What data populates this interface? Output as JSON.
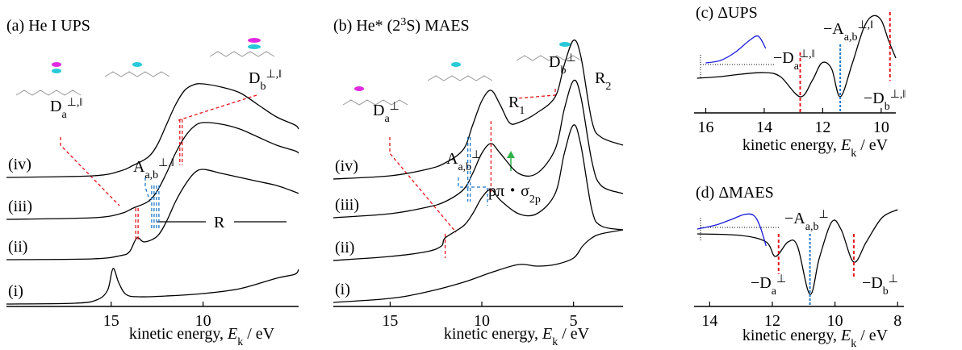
{
  "chart_data": [
    {
      "type": "line",
      "title": [
        {
          "text": "(a) He I UPS"
        }
      ],
      "x_label": [
        {
          "text": "kinetic energy, "
        },
        {
          "text": "E",
          "italic": true
        },
        {
          "text": "k",
          "sub": true
        },
        {
          "text": " / eV"
        }
      ],
      "xlim": [
        20.7,
        4.8
      ],
      "xticks": [
        15,
        10
      ],
      "ylim": [
        0,
        35
      ],
      "series": [
        {
          "name": "(i)",
          "color": "#000000",
          "x": [
            20.7,
            17,
            15.8,
            15.2,
            14.9,
            14.6,
            14.2,
            13.5,
            12,
            10,
            8,
            6,
            5,
            4.8
          ],
          "values": [
            0.3,
            0.4,
            0.8,
            2.0,
            4.7,
            3.0,
            1.5,
            1.2,
            1.3,
            1.6,
            2.2,
            3.5,
            4.0,
            4.6
          ]
        },
        {
          "name": "(ii)",
          "color": "#000000",
          "x": [
            20.7,
            16,
            14.5,
            14,
            13.6,
            13.2,
            12.5,
            12,
            11.5,
            11,
            10.5,
            10,
            9,
            8,
            7,
            6,
            5,
            4.8
          ],
          "values": [
            5.8,
            5.9,
            6.3,
            6.8,
            8.5,
            8.0,
            8.7,
            10.5,
            13.0,
            15.0,
            16.5,
            17.0,
            16.5,
            16.0,
            15.5,
            15.0,
            14.2,
            14.0
          ]
        },
        {
          "name": "(iii)",
          "color": "#000000",
          "x": [
            20.7,
            16,
            14.5,
            13.8,
            13,
            12.5,
            12,
            11.5,
            11,
            10.5,
            10,
            9,
            8,
            7,
            6,
            5,
            4.8
          ],
          "values": [
            10.8,
            11.0,
            11.5,
            12.2,
            13.0,
            14.3,
            16.5,
            19.0,
            21.0,
            22.3,
            22.8,
            22.6,
            22.0,
            21.0,
            20.0,
            19.3,
            19.0
          ]
        },
        {
          "name": "(iv)",
          "color": "#000000",
          "x": [
            20.7,
            16,
            14.5,
            13.8,
            13,
            12.5,
            12,
            11.5,
            11,
            10.5,
            10,
            9,
            8,
            7,
            6,
            5,
            4.8
          ],
          "values": [
            16.0,
            16.2,
            16.8,
            17.5,
            18.5,
            20.0,
            22.5,
            25.0,
            26.8,
            27.5,
            27.6,
            27.2,
            26.5,
            25.0,
            23.5,
            22.5,
            22.0
          ]
        }
      ],
      "markers": [
        {
          "x": 13.6,
          "color": "#e8141c"
        },
        {
          "x": 12.6,
          "color": "#1f78c8"
        },
        {
          "x": 11.2,
          "color": "#e8141c"
        }
      ],
      "annotations": [
        {
          "color": "#e8141c",
          "parts": [
            {
              "text": "D"
            },
            {
              "text": "a",
              "sub": true
            },
            {
              "text": "⊥,‖",
              "sup": true
            }
          ]
        },
        {
          "color": "#1f78c8",
          "parts": [
            {
              "text": "A"
            },
            {
              "text": "a,b",
              "sub": true
            },
            {
              "text": "⊥,‖",
              "sup": true
            }
          ]
        },
        {
          "color": "#e8141c",
          "parts": [
            {
              "text": "D"
            },
            {
              "text": "b",
              "sub": true
            },
            {
              "text": "⊥,‖",
              "sup": true
            }
          ]
        },
        {
          "color": "#000000",
          "parts": [
            {
              "text": "R"
            }
          ]
        }
      ]
    },
    {
      "type": "line",
      "title": [
        {
          "text": "(b) He* (2"
        },
        {
          "text": "3",
          "sup": true
        },
        {
          "text": "S) MAES"
        }
      ],
      "x_label": [
        {
          "text": "kinetic energy, "
        },
        {
          "text": "E",
          "italic": true
        },
        {
          "text": "k",
          "sub": true
        },
        {
          "text": " / eV"
        }
      ],
      "xlim": [
        18.1,
        2.3
      ],
      "xticks": [
        15,
        10,
        5
      ],
      "ylim": [
        0,
        35
      ],
      "series": [
        {
          "name": "(i)",
          "color": "#000000",
          "x": [
            18.1,
            15,
            13,
            11,
            9.5,
            8,
            7,
            6,
            5,
            4.5,
            4,
            3.5,
            2.3
          ],
          "values": [
            0.5,
            1.0,
            1.8,
            3.0,
            4.2,
            5.2,
            5.0,
            5.2,
            6.0,
            7.5,
            8.5,
            9.0,
            9.5
          ]
        },
        {
          "name": "(ii)",
          "color": "#000000",
          "x": [
            18.1,
            15,
            13,
            12.2,
            12,
            11,
            10.5,
            10,
            9.5,
            9,
            8,
            7,
            6,
            5.5,
            5,
            4.6,
            4,
            3.5,
            2.3
          ],
          "values": [
            5.7,
            6.2,
            6.8,
            7.5,
            8.5,
            10.0,
            11.5,
            13.5,
            14.5,
            13.2,
            11.5,
            11.5,
            14.0,
            19.0,
            22.5,
            20.0,
            12.0,
            10.0,
            9.5
          ]
        },
        {
          "name": "(iii)",
          "color": "#000000",
          "x": [
            18.1,
            15,
            13,
            12,
            11,
            10.5,
            10,
            9.5,
            9,
            8,
            7,
            6,
            5.5,
            5,
            4.6,
            4,
            3.5,
            2.3
          ],
          "values": [
            11.0,
            11.5,
            12.3,
            13.0,
            14.5,
            16.5,
            19.0,
            20.2,
            19.0,
            16.5,
            16.5,
            19.5,
            24.5,
            28.0,
            26.0,
            18.0,
            15.0,
            14.0
          ]
        },
        {
          "name": "(iv)",
          "color": "#000000",
          "x": [
            18.1,
            15,
            13,
            12,
            11,
            10.5,
            10,
            9.5,
            9,
            8.5,
            8,
            7,
            6,
            5.5,
            5,
            4.6,
            4,
            3.5,
            2.3
          ],
          "values": [
            15.8,
            16.2,
            17.0,
            17.8,
            19.5,
            22.5,
            25.5,
            26.8,
            25.0,
            22.8,
            22.8,
            24.0,
            26.0,
            30.0,
            33.0,
            31.0,
            23.0,
            21.0,
            20.0
          ]
        }
      ],
      "markers": [
        {
          "x": 12.0,
          "color": "#e8141c"
        },
        {
          "x": 10.7,
          "color": "#1f78c8"
        },
        {
          "x": 9.5,
          "color": "#e8141c"
        }
      ],
      "annotations": [
        {
          "color": "#e8141c",
          "parts": [
            {
              "text": "D"
            },
            {
              "text": "a",
              "sub": true
            },
            {
              "text": "⊥",
              "sup": true
            }
          ]
        },
        {
          "color": "#1f78c8",
          "parts": [
            {
              "text": "A"
            },
            {
              "text": "a,b",
              "sub": true
            },
            {
              "text": "⊥",
              "sup": true
            }
          ]
        },
        {
          "color": "#e8141c",
          "parts": [
            {
              "text": "D"
            },
            {
              "text": "b",
              "sub": true
            },
            {
              "text": "⊥",
              "sup": true
            }
          ]
        },
        {
          "color": "#000000",
          "parts": [
            {
              "text": "R"
            },
            {
              "text": "1",
              "sub": true
            }
          ]
        },
        {
          "color": "#000000",
          "parts": [
            {
              "text": "R"
            },
            {
              "text": "2",
              "sub": true
            }
          ]
        },
        {
          "color": "#2db34a",
          "parts": [
            {
              "text": "pπ・σ"
            },
            {
              "text": "2p",
              "sub": true
            }
          ]
        }
      ]
    },
    {
      "type": "line",
      "title": [
        {
          "text": "(c) ΔUPS"
        }
      ],
      "x_label": [
        {
          "text": "kinetic energy, "
        },
        {
          "text": "E",
          "italic": true
        },
        {
          "text": "k",
          "sub": true
        },
        {
          "text": " / eV"
        }
      ],
      "xlim": [
        16.4,
        9.5
      ],
      "xticks": [
        16,
        14,
        12,
        10
      ],
      "ylim": [
        -6,
        7
      ],
      "series": [
        {
          "color": "#000000",
          "x": [
            16.3,
            15.5,
            14.8,
            14.0,
            13.45,
            12.77,
            12.36,
            12.03,
            11.7,
            11.4,
            11.0,
            10.6,
            10.3,
            10.0,
            9.75,
            9.5
          ],
          "values": [
            -1.7,
            -1.5,
            -1.2,
            -1.0,
            -1.5,
            -4.0,
            -2.0,
            0.2,
            -0.5,
            -4.0,
            0.0,
            4.5,
            6.0,
            5.5,
            3.0,
            0.8
          ]
        },
        {
          "color": "#1a1adc",
          "x": [
            16.0,
            15.5,
            15.0,
            14.5,
            14.2,
            13.95
          ],
          "values": [
            0.2,
            0.5,
            1.5,
            3.0,
            3.5,
            2.0
          ]
        }
      ],
      "markers": [
        {
          "x": 12.77,
          "color": "#e8141c"
        },
        {
          "x": 11.4,
          "color": "#1f78c8"
        },
        {
          "x": 9.7,
          "color": "#e8141c"
        }
      ],
      "annotations": [
        {
          "color": "#e8141c",
          "parts": [
            {
              "text": "−D"
            },
            {
              "text": "a",
              "sub": true
            },
            {
              "text": "⊥,‖",
              "sup": true
            }
          ]
        },
        {
          "color": "#1f78c8",
          "parts": [
            {
              "text": "−A"
            },
            {
              "text": "a,b",
              "sub": true
            },
            {
              "text": "⊥,‖",
              "sup": true
            }
          ]
        },
        {
          "color": "#e8141c",
          "parts": [
            {
              "text": "−D"
            },
            {
              "text": "b",
              "sub": true
            },
            {
              "text": "⊥,‖",
              "sup": true
            }
          ]
        }
      ]
    },
    {
      "type": "line",
      "title": [
        {
          "text": "(d) ΔMAES"
        }
      ],
      "x_label": [
        {
          "text": "kinetic energy, "
        },
        {
          "text": "E",
          "italic": true
        },
        {
          "text": "k",
          "sub": true
        },
        {
          "text": " / eV"
        }
      ],
      "xlim": [
        14.5,
        7.8
      ],
      "xticks": [
        14,
        12,
        10,
        8
      ],
      "ylim": [
        -9.8,
        2.7
      ],
      "series": [
        {
          "color": "#000000",
          "x": [
            14.4,
            13,
            12.2,
            11.9,
            11.5,
            11.2,
            10.8,
            10.5,
            10.1,
            9.8,
            9.4,
            9.0,
            8.5,
            8.0
          ],
          "values": [
            -0.8,
            -1.0,
            -1.8,
            -3.6,
            -1.8,
            -2.3,
            -8.3,
            -3.8,
            0.7,
            -0.3,
            -4.3,
            -1.8,
            1.2,
            2.2
          ]
        },
        {
          "color": "#1a1adc",
          "x": [
            14.4,
            13.8,
            13.3,
            12.9,
            12.6,
            12.4,
            12.2
          ],
          "values": [
            -0.2,
            0.3,
            1.0,
            1.6,
            1.5,
            0.2,
            -2.3
          ]
        }
      ],
      "markers": [
        {
          "x": 11.8,
          "color": "#e8141c"
        },
        {
          "x": 10.8,
          "color": "#1f78c8"
        },
        {
          "x": 9.4,
          "color": "#e8141c"
        }
      ],
      "annotations": [
        {
          "color": "#1f78c8",
          "parts": [
            {
              "text": "−A"
            },
            {
              "text": "a,b",
              "sub": true
            },
            {
              "text": "⊥",
              "sup": true
            }
          ]
        },
        {
          "color": "#e8141c",
          "parts": [
            {
              "text": "−D"
            },
            {
              "text": "a",
              "sub": true
            },
            {
              "text": "⊥",
              "sup": true
            }
          ]
        },
        {
          "color": "#e8141c",
          "parts": [
            {
              "text": "−D"
            },
            {
              "text": "b",
              "sub": true
            },
            {
              "text": "⊥",
              "sup": true
            }
          ]
        }
      ]
    }
  ]
}
